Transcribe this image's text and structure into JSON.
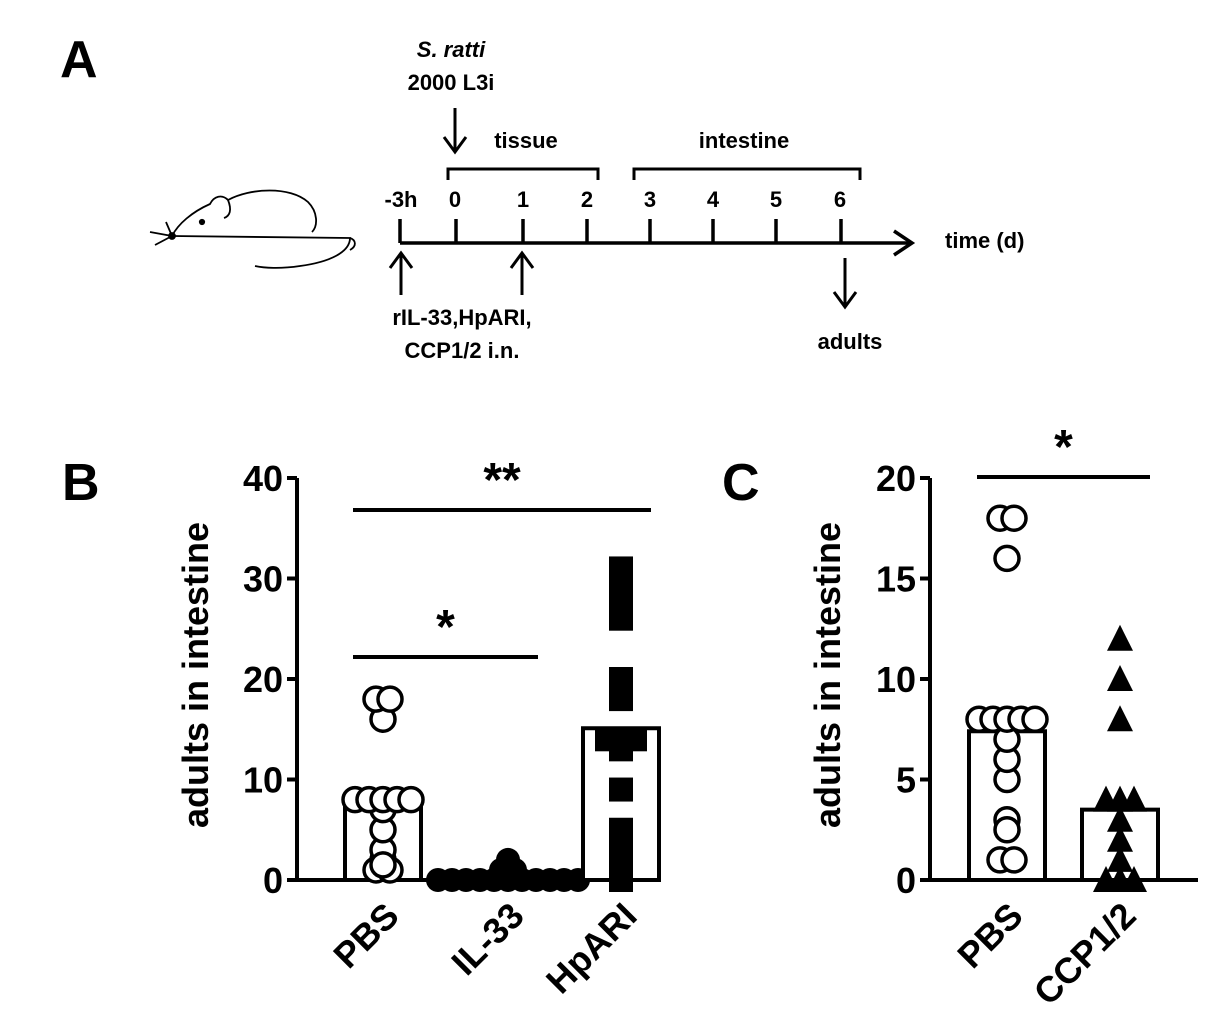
{
  "panel_labels": {
    "a": "A",
    "b": "B",
    "c": "C"
  },
  "timeline": {
    "infection_line1": "S. ratti",
    "infection_line2": "2000 L3i",
    "phase_tissue": "tissue",
    "phase_intestine": "intestine",
    "ticks": [
      "-3h",
      "0",
      "1",
      "2",
      "3",
      "4",
      "5",
      "6"
    ],
    "time_label": "time (d)",
    "treatment_line1": "rIL-33,HpARI,",
    "treatment_line2": "CCP1/2  i.n.",
    "readout": "adults"
  },
  "chart_data": [
    {
      "type": "scatter",
      "panel": "B",
      "ylabel": "adults in intestine",
      "ylim": [
        0,
        40
      ],
      "yticks": [
        0,
        10,
        20,
        30,
        40
      ],
      "categories": [
        "PBS",
        "IL-33",
        "HpARI"
      ],
      "bar_means": [
        7.3,
        0.4,
        15.1
      ],
      "series": [
        {
          "category": "PBS",
          "marker": "open-circle",
          "values": [
            18,
            18,
            16,
            8,
            8,
            8,
            8,
            8,
            7,
            5,
            3,
            2,
            1.5,
            1,
            1
          ]
        },
        {
          "category": "IL-33",
          "marker": "filled-circle",
          "values": [
            2,
            1,
            1,
            0,
            0,
            0,
            0,
            0,
            0,
            0,
            0,
            0,
            0,
            0
          ]
        },
        {
          "category": "HpARI",
          "marker": "filled-square",
          "values": [
            31,
            30,
            28,
            26,
            20,
            18,
            14,
            14,
            14,
            13,
            9,
            5,
            4,
            2,
            0
          ]
        }
      ],
      "significance": [
        {
          "from": "PBS",
          "to": "IL-33",
          "label": "*"
        },
        {
          "from": "PBS",
          "to": "HpARI",
          "label": "**"
        }
      ]
    },
    {
      "type": "scatter",
      "panel": "C",
      "ylabel": "adults in intestine",
      "ylim": [
        0,
        20
      ],
      "yticks": [
        0,
        5,
        10,
        15,
        20
      ],
      "categories": [
        "PBS",
        "CCP1/2"
      ],
      "bar_means": [
        7.4,
        3.5
      ],
      "series": [
        {
          "category": "PBS",
          "marker": "open-circle",
          "values": [
            18,
            18,
            16,
            8,
            8,
            8,
            8,
            8,
            7,
            6,
            5,
            3,
            2.5,
            1,
            1
          ]
        },
        {
          "category": "CCP1/2",
          "marker": "filled-triangle",
          "values": [
            12,
            10,
            8,
            4,
            4,
            4,
            3,
            2,
            1,
            0,
            0,
            0
          ]
        }
      ],
      "significance": [
        {
          "from": "PBS",
          "to": "CCP1/2",
          "label": "*"
        }
      ]
    }
  ]
}
